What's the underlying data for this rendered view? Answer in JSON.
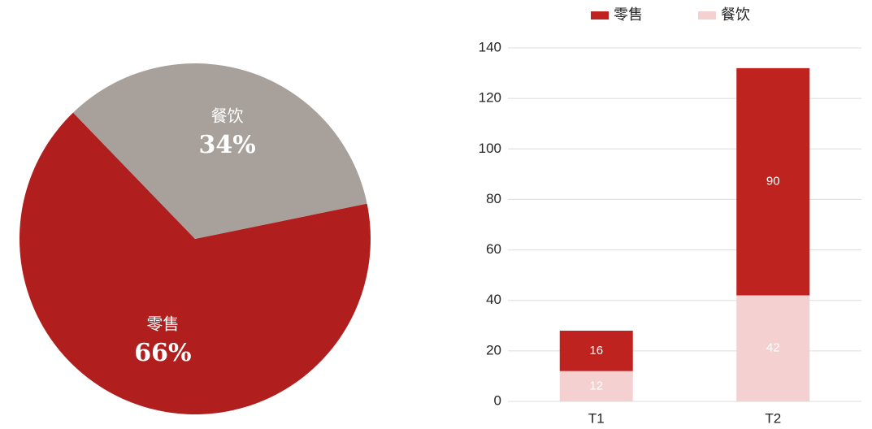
{
  "chart_data": [
    {
      "type": "pie",
      "categories": [
        "零售",
        "餐饮"
      ],
      "values": [
        66,
        34
      ],
      "value_labels": [
        "66%",
        "34%"
      ],
      "colors": [
        "#b01e1e",
        "#a8a19b"
      ]
    },
    {
      "type": "bar",
      "categories": [
        "T1",
        "T2"
      ],
      "series": [
        {
          "name": "零售",
          "color": "#be2320",
          "values": [
            16,
            90
          ]
        },
        {
          "name": "餐饮",
          "color": "#f4d0d0",
          "values": [
            12,
            42
          ]
        }
      ],
      "ylim": [
        0,
        140
      ],
      "yticks": [
        0,
        20,
        40,
        60,
        80,
        100,
        120,
        140
      ],
      "grid": true,
      "legend": "top"
    }
  ]
}
